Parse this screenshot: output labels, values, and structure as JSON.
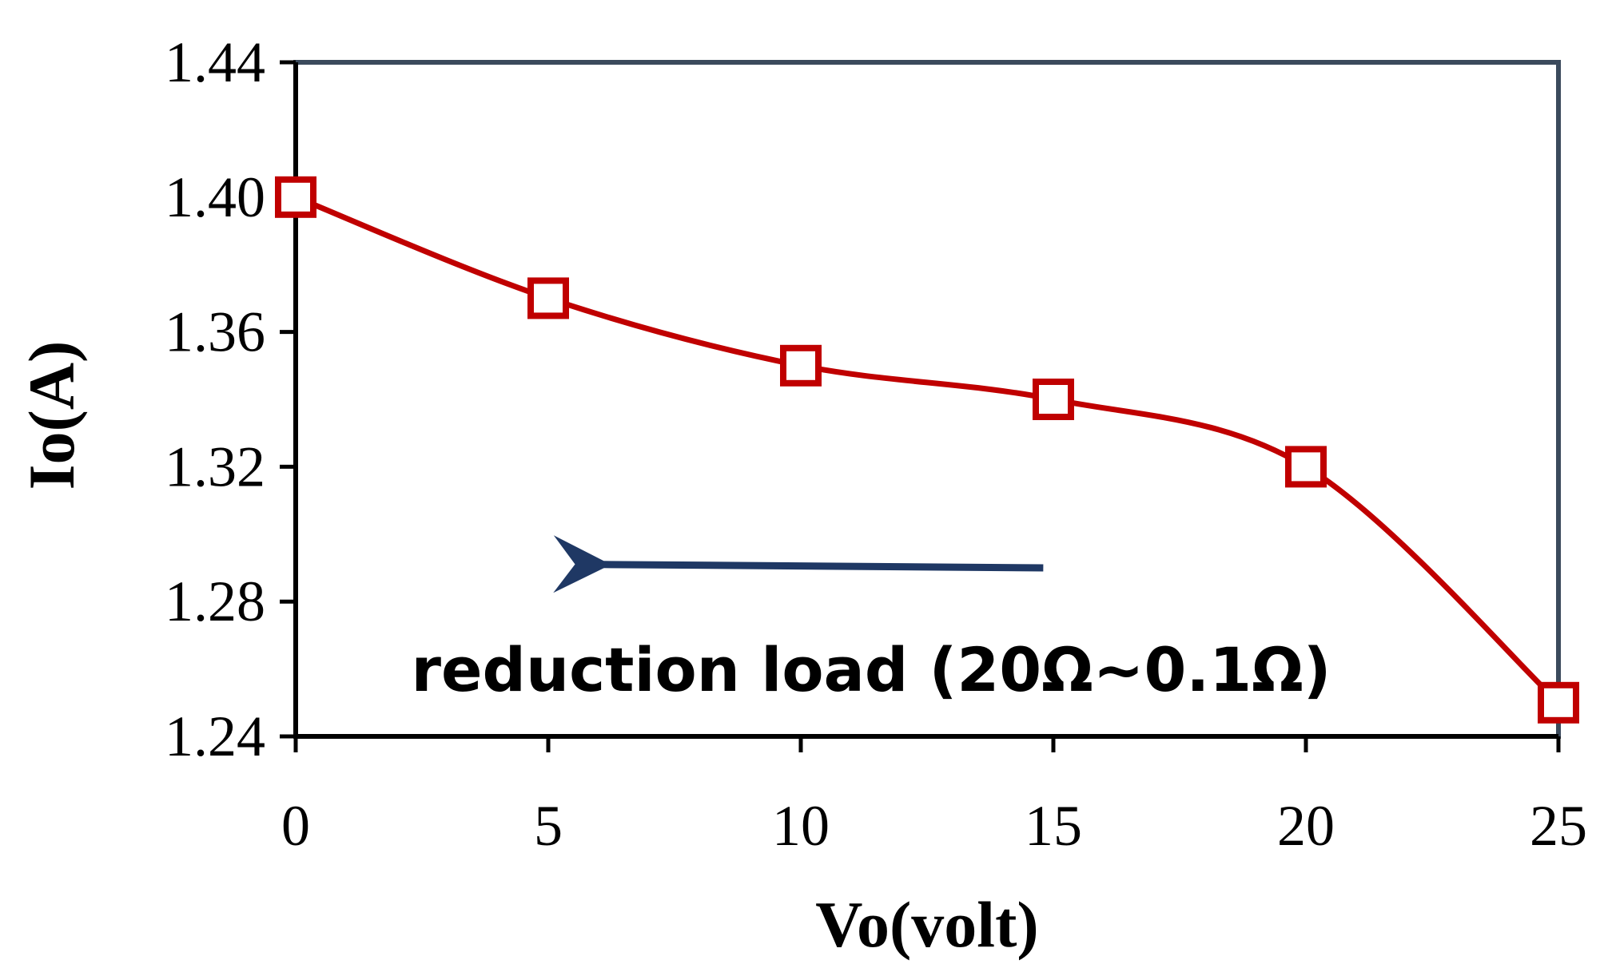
{
  "chart_data": {
    "type": "line",
    "title": "",
    "xlabel": "Vo(volt)",
    "ylabel": "Io(A)",
    "xlim": [
      0,
      25
    ],
    "ylim": [
      1.24,
      1.44
    ],
    "x_ticks": [
      "0",
      "5",
      "10",
      "15",
      "20",
      "25"
    ],
    "y_ticks": [
      "1.24",
      "1.28",
      "1.32",
      "1.36",
      "1.40",
      "1.44"
    ],
    "grid": false,
    "series": [
      {
        "name": "Io",
        "x": [
          0,
          5,
          10,
          15,
          20,
          25
        ],
        "y": [
          1.4,
          1.37,
          1.35,
          1.34,
          1.32,
          1.25
        ],
        "color": "#c00000",
        "marker": "square-open",
        "smooth": true
      }
    ],
    "annotations": [
      {
        "text": "reduction load (20Ω~0.1Ω)",
        "arrow": {
          "from": [
            14.8,
            1.29
          ],
          "to": [
            6.1,
            1.291
          ],
          "color": "#1f3864"
        }
      }
    ],
    "colors": {
      "plot_border": "#3b4a5c",
      "axes": "#000000"
    }
  }
}
